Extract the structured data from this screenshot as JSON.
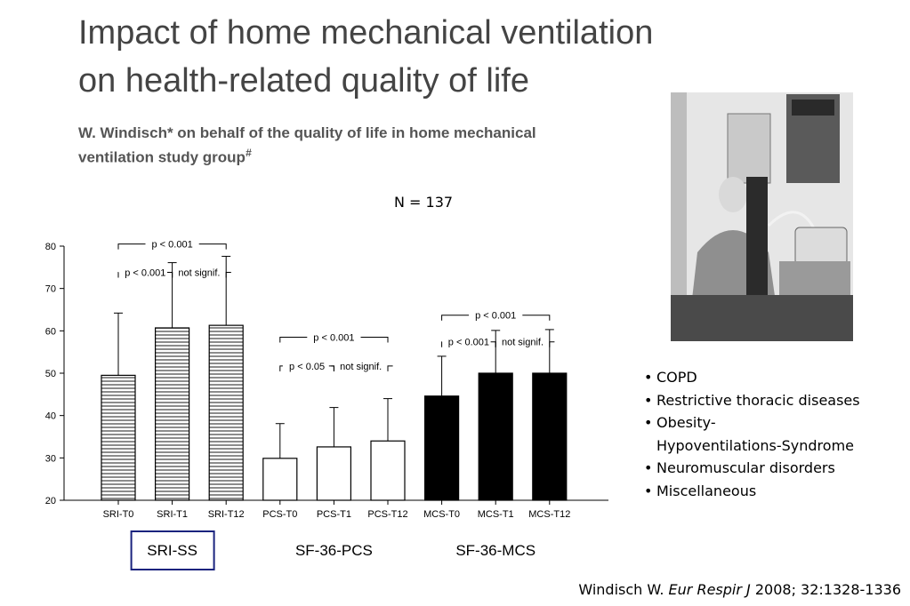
{
  "slide": {
    "title_line1": "Impact of home mechanical ventilation",
    "title_line2": "on health-related quality of life",
    "authors_line1": "W. Windisch* on behalf of the quality of life in home mechanical",
    "authors_line2": "ventilation study group",
    "authors_mark": "#",
    "n_label": "N = 137",
    "bullets": [
      "COPD",
      "Restrictive thoracic diseases",
      "Obesity-\nHypoventilations-Syndrome",
      "Neuromuscular disorders",
      "Miscellaneous"
    ],
    "citation": {
      "author": "Windisch W.",
      "journal": "Eur Respir J",
      "details": "2008; 32:1328-1336"
    }
  },
  "chart_data": {
    "type": "bar",
    "categories": [
      "SRI-T0",
      "SRI-T1",
      "SRI-T12",
      "PCS-T0",
      "PCS-T1",
      "PCS-T12",
      "MCS-T0",
      "MCS-T1",
      "MCS-T12"
    ],
    "values": [
      49.5,
      60.7,
      61.3,
      29.9,
      32.6,
      34.0,
      44.6,
      50.0,
      50.0
    ],
    "error_upper": [
      64.2,
      76.1,
      77.6,
      38.1,
      41.9,
      44.0,
      54.0,
      60.1,
      60.3
    ],
    "ylim": [
      20,
      80
    ],
    "yticks": [
      20,
      30,
      40,
      50,
      60,
      70,
      80
    ],
    "groups": [
      {
        "label": "SRI-SS",
        "fill": "hatched",
        "boxed": true
      },
      {
        "label": "SF-36-PCS",
        "fill": "white",
        "boxed": false
      },
      {
        "label": "SF-36-MCS",
        "fill": "black",
        "boxed": false
      }
    ],
    "brackets": [
      {
        "from": 0,
        "to": 2,
        "label": "p < 0.001",
        "level": 80.5
      },
      {
        "from": 0,
        "to": 1,
        "label": "p < 0.001",
        "level": 73.8
      },
      {
        "from": 1,
        "to": 2,
        "label": "not signif.",
        "level": 73.8
      },
      {
        "from": 3,
        "to": 5,
        "label": "p < 0.001",
        "level": 58.5
      },
      {
        "from": 3,
        "to": 4,
        "label": "p < 0.05",
        "level": 51.7
      },
      {
        "from": 4,
        "to": 5,
        "label": "not signif.",
        "level": 51.7
      },
      {
        "from": 6,
        "to": 8,
        "label": "p < 0.001",
        "level": 63.7
      },
      {
        "from": 6,
        "to": 7,
        "label": "p < 0.001",
        "level": 57.4
      },
      {
        "from": 7,
        "to": 8,
        "label": "not signif.",
        "level": 57.4
      }
    ],
    "colors": {
      "hatch": "#9a9a9a",
      "black": "#000000",
      "box_border": "#1a237e"
    }
  }
}
